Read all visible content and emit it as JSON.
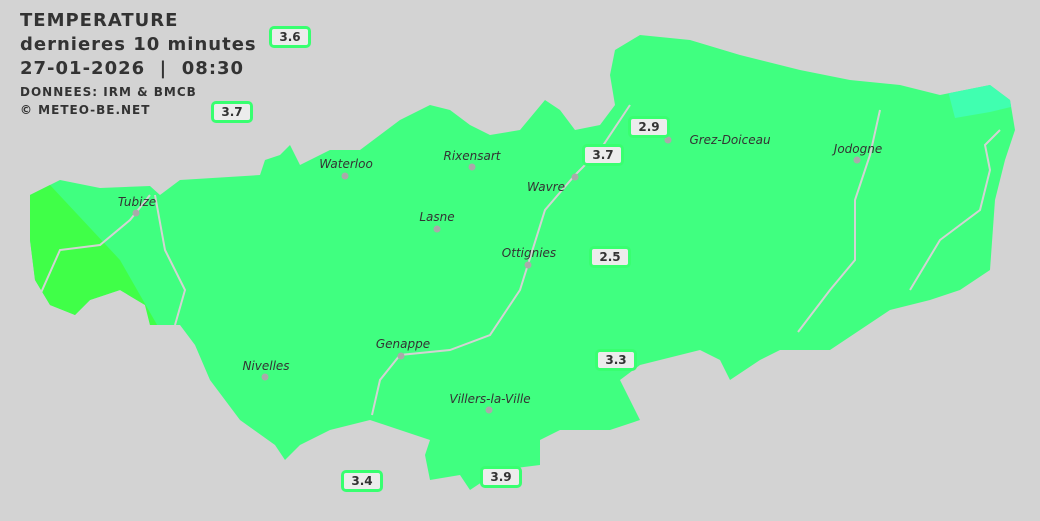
{
  "header": {
    "title": "TEMPERATURE",
    "subtitle": "dernieres 10 minutes",
    "datetime": "27-01-2026  |  08:30",
    "source": "DONNEES: IRM & BMCB",
    "copyright": "© METEO-BE.NET"
  },
  "colors": {
    "background": "#d3d3d3",
    "main_zone": "#40ff80",
    "warm_zone": "#40ff48",
    "cool_zone": "#40ffb0",
    "label_border": "#38ff70"
  },
  "cities": [
    {
      "name": "Waterloo"
    },
    {
      "name": "Rixensart"
    },
    {
      "name": "Wavre"
    },
    {
      "name": "Grez-Doiceau"
    },
    {
      "name": "Jodogne"
    },
    {
      "name": "Tubize"
    },
    {
      "name": "Lasne"
    },
    {
      "name": "Ottignies"
    },
    {
      "name": "Genappe"
    },
    {
      "name": "Nivelles"
    },
    {
      "name": "Villers-la-Ville"
    }
  ],
  "stations": [
    {
      "value": "3.6"
    },
    {
      "value": "3.7"
    },
    {
      "value": "2.9"
    },
    {
      "value": "3.7"
    },
    {
      "value": "2.5"
    },
    {
      "value": "3.3"
    },
    {
      "value": "3.4"
    },
    {
      "value": "3.9"
    }
  ]
}
